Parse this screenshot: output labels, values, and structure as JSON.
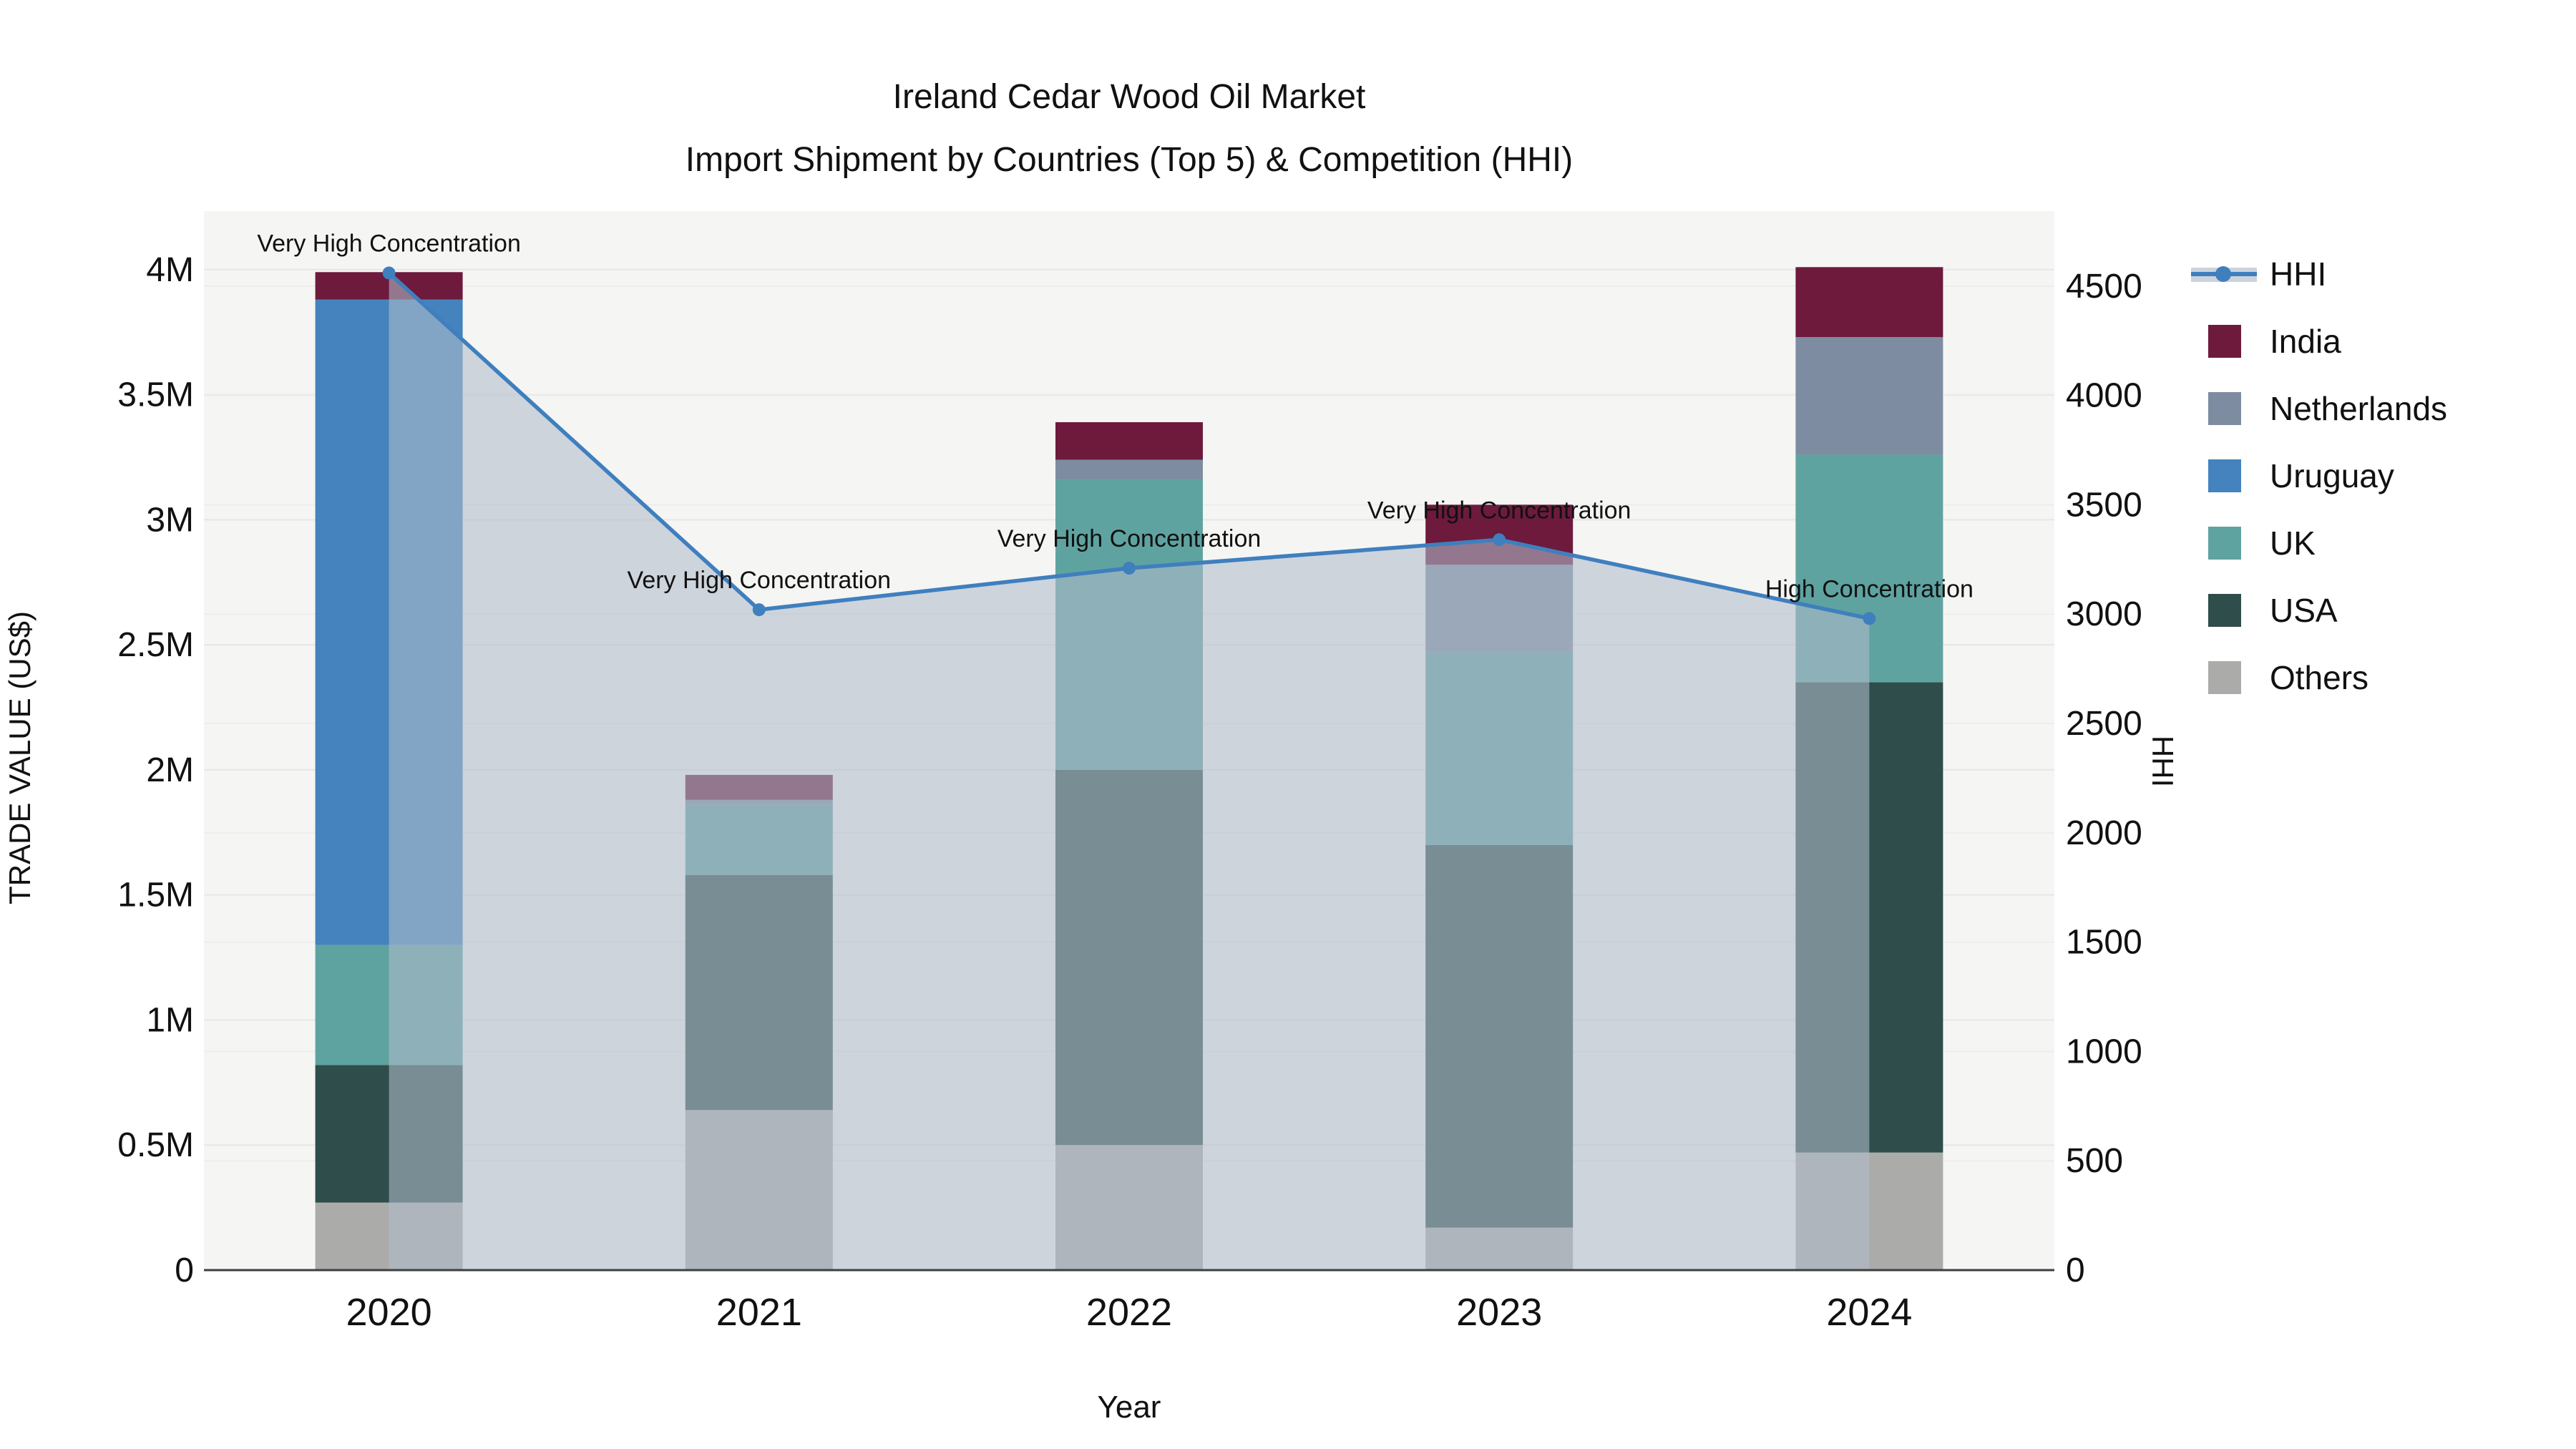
{
  "title": {
    "line1": "Ireland Cedar Wood Oil Market",
    "line2": "Import Shipment by Countries (Top 5) & Competition (HHI)"
  },
  "axes": {
    "x": {
      "title": "Year"
    },
    "y_left": {
      "title": "TRADE VALUE (US$)"
    },
    "y_right": {
      "title": "HHI"
    }
  },
  "chart_data": {
    "type": "combo_stacked_bar_plus_line",
    "categories": [
      "2020",
      "2021",
      "2022",
      "2023",
      "2024"
    ],
    "bar_value_unit": "million US$",
    "series": [
      {
        "name": "Others",
        "color": "#abacaa",
        "values": [
          0.27,
          0.64,
          0.5,
          0.17,
          0.47
        ]
      },
      {
        "name": "USA",
        "color": "#2e4d4b",
        "values": [
          0.55,
          0.94,
          1.5,
          1.53,
          1.88
        ]
      },
      {
        "name": "UK",
        "color": "#5fa3a1",
        "values": [
          0.48,
          0.28,
          1.16,
          0.77,
          0.91
        ]
      },
      {
        "name": "Uruguay",
        "color": "#4483bd",
        "values": [
          2.58,
          0.0,
          0.0,
          0.0,
          0.0
        ]
      },
      {
        "name": "Netherlands",
        "color": "#7d8ca0",
        "values": [
          0.0,
          0.02,
          0.08,
          0.35,
          0.47
        ]
      },
      {
        "name": "India",
        "color": "#6d1a3d",
        "values": [
          0.11,
          0.1,
          0.15,
          0.24,
          0.28
        ]
      }
    ],
    "bar_totals": [
      3.99,
      1.98,
      3.39,
      3.06,
      4.01
    ],
    "line": {
      "name": "HHI",
      "color": "#3f7fbe",
      "area_fill": "rgba(175,187,204,0.58)",
      "values": [
        4560,
        3020,
        3210,
        3340,
        2980
      ]
    },
    "point_annotations": [
      "Very High Concentration",
      "Very High Concentration",
      "Very High Concentration",
      "Very High Concentration",
      "High Concentration"
    ],
    "y_left_axis": {
      "ticks": [
        {
          "v": 0,
          "label": "0"
        },
        {
          "v": 0.5,
          "label": "0.5M"
        },
        {
          "v": 1,
          "label": "1M"
        },
        {
          "v": 1.5,
          "label": "1.5M"
        },
        {
          "v": 2,
          "label": "2M"
        },
        {
          "v": 2.5,
          "label": "2.5M"
        },
        {
          "v": 3,
          "label": "3M"
        },
        {
          "v": 3.5,
          "label": "3.5M"
        },
        {
          "v": 4,
          "label": "4M"
        }
      ],
      "range": [
        0,
        4.234
      ]
    },
    "y_right_axis": {
      "ticks": [
        {
          "v": 0,
          "label": "0"
        },
        {
          "v": 500,
          "label": "500"
        },
        {
          "v": 1000,
          "label": "1000"
        },
        {
          "v": 1500,
          "label": "1500"
        },
        {
          "v": 2000,
          "label": "2000"
        },
        {
          "v": 2500,
          "label": "2500"
        },
        {
          "v": 3000,
          "label": "3000"
        },
        {
          "v": 3500,
          "label": "3500"
        },
        {
          "v": 4000,
          "label": "4000"
        },
        {
          "v": 4500,
          "label": "4500"
        }
      ],
      "range": [
        0,
        4843
      ]
    },
    "legend_order": [
      "HHI",
      "India",
      "Netherlands",
      "Uruguay",
      "UK",
      "USA",
      "Others"
    ],
    "layout_hints": {
      "plot_bg": "#f5f5f4",
      "grid_on": true,
      "legend_position": "right"
    }
  },
  "colors": {
    "grid_left": "#e6e6e5",
    "grid_right": "#ededec",
    "axis_line": "#3f3f3f",
    "text": "#111111"
  }
}
